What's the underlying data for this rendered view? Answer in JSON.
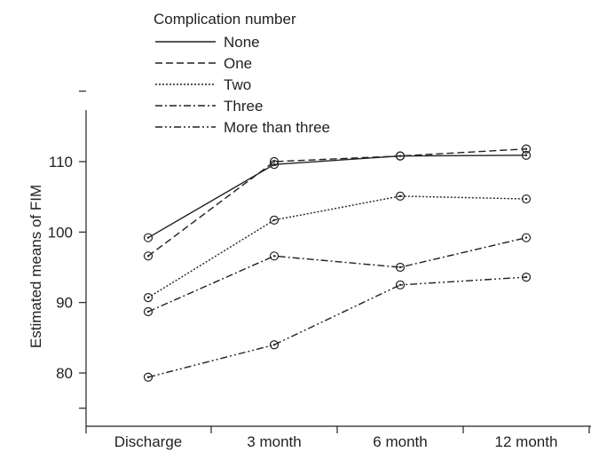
{
  "chart_data": {
    "type": "line",
    "xlabel": "",
    "ylabel": "Estimated means of FIM",
    "ylim": [
      75,
      120
    ],
    "yticks": [
      80,
      90,
      100,
      110
    ],
    "categories": [
      "Discharge",
      "3 month",
      "6 month",
      "12 month"
    ],
    "legend_title": "Complication number",
    "legend_position": "top-left",
    "grid": false,
    "series": [
      {
        "name": "None",
        "dash": "solid",
        "values": [
          99.2,
          109.6,
          110.8,
          110.9
        ]
      },
      {
        "name": "One",
        "dash": "dashed",
        "values": [
          96.6,
          110.0,
          110.8,
          111.8
        ]
      },
      {
        "name": "Two",
        "dash": "dotted",
        "values": [
          90.7,
          101.7,
          105.1,
          104.7
        ]
      },
      {
        "name": "Three",
        "dash": "dashdot",
        "values": [
          88.7,
          96.6,
          95.0,
          99.2
        ]
      },
      {
        "name": "More than three",
        "dash": "dashdotdot",
        "values": [
          79.4,
          84.0,
          92.5,
          93.6
        ]
      }
    ]
  }
}
